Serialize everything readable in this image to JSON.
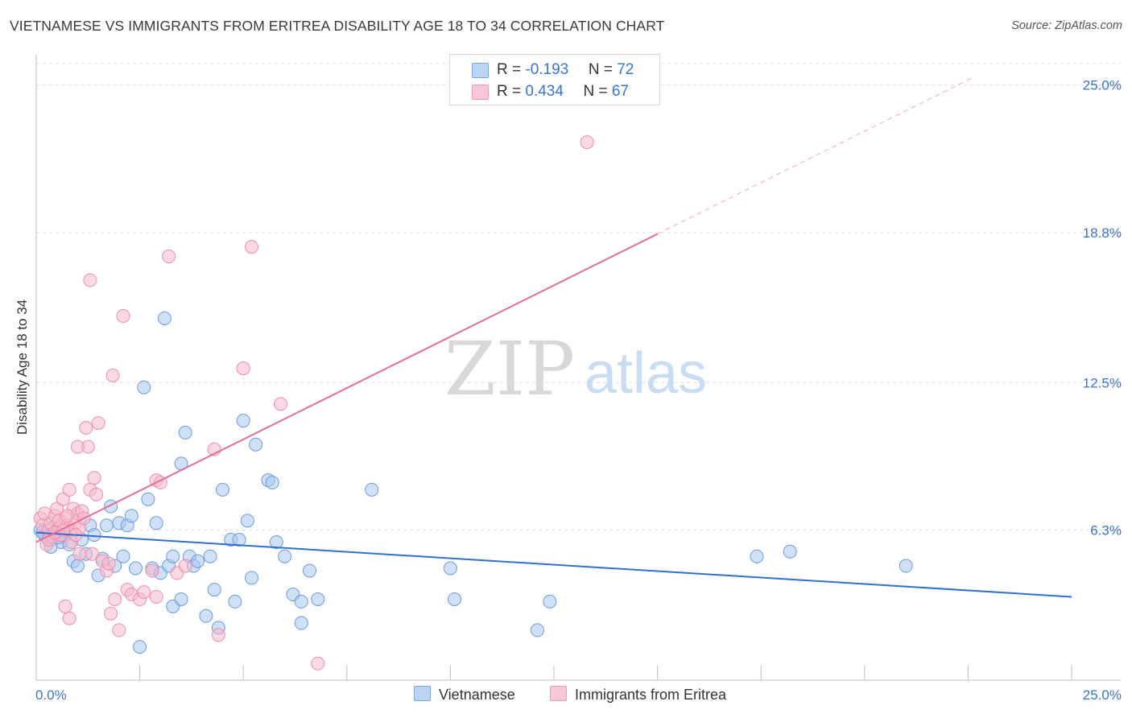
{
  "title": "VIETNAMESE VS IMMIGRANTS FROM ERITREA DISABILITY AGE 18 TO 34 CORRELATION CHART",
  "source": "Source: ZipAtlas.com",
  "watermark": {
    "zip": "ZIP",
    "atlas": "atlas"
  },
  "legend_top": [
    {
      "r_label": "R = ",
      "r_value": "-0.193",
      "n_label": "N = ",
      "n_value": "72"
    },
    {
      "r_label": "R = ",
      "r_value": "0.434",
      "n_label": "N = ",
      "n_value": "67"
    }
  ],
  "legend_bottom": [
    "Vietnamese",
    "Immigrants from Eritrea"
  ],
  "colors": {
    "blue_fill": "#a9c8f0",
    "blue_stroke": "#6a9be0",
    "blue_line": "#2f6fd0",
    "pink_fill": "#f7b9cc",
    "pink_stroke": "#ec8eaa",
    "pink_line": "#e0709a",
    "tick_text": "#3a74d0"
  },
  "chart_data": {
    "type": "scatter",
    "title": "VIETNAMESE VS IMMIGRANTS FROM ERITREA DISABILITY AGE 18 TO 34 CORRELATION CHART",
    "xlabel": "",
    "ylabel": "Disability Age 18 to 34",
    "xlim": [
      0,
      25
    ],
    "ylim": [
      0,
      25.9
    ],
    "x_tick_labels": [
      "0.0%",
      "25.0%"
    ],
    "y_ticks": [
      6.3,
      12.5,
      18.8,
      25.0
    ],
    "y_tick_labels": [
      "6.3%",
      "12.5%",
      "18.8%",
      "25.0%"
    ],
    "grid": true,
    "series": [
      {
        "name": "Vietnamese",
        "color": "#a9c8f0",
        "r": -0.193,
        "n": 72,
        "trend": {
          "x": [
            0,
            25
          ],
          "y": [
            6.2,
            3.5
          ],
          "dashed_from": null
        },
        "points": [
          [
            0.1,
            6.3
          ],
          [
            0.2,
            6.1
          ],
          [
            0.3,
            6.0
          ],
          [
            0.4,
            6.4
          ],
          [
            0.5,
            6.2
          ],
          [
            0.6,
            5.8
          ],
          [
            0.7,
            6.1
          ],
          [
            0.8,
            5.7
          ],
          [
            0.9,
            5.0
          ],
          [
            1.0,
            4.8
          ],
          [
            1.1,
            5.9
          ],
          [
            1.2,
            5.3
          ],
          [
            1.3,
            6.5
          ],
          [
            1.4,
            6.1
          ],
          [
            1.5,
            4.4
          ],
          [
            1.6,
            5.1
          ],
          [
            1.7,
            6.5
          ],
          [
            1.8,
            7.3
          ],
          [
            1.9,
            4.8
          ],
          [
            2.0,
            6.6
          ],
          [
            2.1,
            5.2
          ],
          [
            2.2,
            6.5
          ],
          [
            2.3,
            6.9
          ],
          [
            2.4,
            4.7
          ],
          [
            2.5,
            1.4
          ],
          [
            2.6,
            12.3
          ],
          [
            2.7,
            7.6
          ],
          [
            2.8,
            4.7
          ],
          [
            2.9,
            6.6
          ],
          [
            3.0,
            4.5
          ],
          [
            3.1,
            15.2
          ],
          [
            3.2,
            4.8
          ],
          [
            3.3,
            5.2
          ],
          [
            3.3,
            3.1
          ],
          [
            3.5,
            9.1
          ],
          [
            3.5,
            3.4
          ],
          [
            3.6,
            10.4
          ],
          [
            3.7,
            5.2
          ],
          [
            3.8,
            4.8
          ],
          [
            3.9,
            5.0
          ],
          [
            4.1,
            2.7
          ],
          [
            4.2,
            5.2
          ],
          [
            4.3,
            3.8
          ],
          [
            4.4,
            2.2
          ],
          [
            4.5,
            8.0
          ],
          [
            4.7,
            5.9
          ],
          [
            4.8,
            3.3
          ],
          [
            4.9,
            5.9
          ],
          [
            5.0,
            10.9
          ],
          [
            5.1,
            6.7
          ],
          [
            5.2,
            4.3
          ],
          [
            5.3,
            9.9
          ],
          [
            5.6,
            8.4
          ],
          [
            5.7,
            8.3
          ],
          [
            5.8,
            5.8
          ],
          [
            6.0,
            5.2
          ],
          [
            6.2,
            3.6
          ],
          [
            6.4,
            3.3
          ],
          [
            6.4,
            2.4
          ],
          [
            6.6,
            4.6
          ],
          [
            6.8,
            3.4
          ],
          [
            8.1,
            8.0
          ],
          [
            10.0,
            4.7
          ],
          [
            10.1,
            3.4
          ],
          [
            12.1,
            2.1
          ],
          [
            12.4,
            3.3
          ],
          [
            17.4,
            5.2
          ],
          [
            18.2,
            5.4
          ],
          [
            21.0,
            4.8
          ],
          [
            0.35,
            5.6
          ],
          [
            0.55,
            6.0
          ],
          [
            0.15,
            6.2
          ]
        ]
      },
      {
        "name": "Immigrants from Eritrea",
        "color": "#f7b9cc",
        "r": 0.434,
        "n": 67,
        "trend": {
          "x": [
            0,
            22.6
          ],
          "y": [
            5.8,
            25.3
          ],
          "dashed_from": 15.0
        },
        "points": [
          [
            0.1,
            6.8
          ],
          [
            0.15,
            6.5
          ],
          [
            0.2,
            7.0
          ],
          [
            0.25,
            5.7
          ],
          [
            0.3,
            6.3
          ],
          [
            0.35,
            6.6
          ],
          [
            0.4,
            6.0
          ],
          [
            0.45,
            6.9
          ],
          [
            0.5,
            7.2
          ],
          [
            0.55,
            6.4
          ],
          [
            0.6,
            6.1
          ],
          [
            0.65,
            7.6
          ],
          [
            0.7,
            6.8
          ],
          [
            0.75,
            6.5
          ],
          [
            0.8,
            8.0
          ],
          [
            0.85,
            6.3
          ],
          [
            0.9,
            7.2
          ],
          [
            0.95,
            6.6
          ],
          [
            1.0,
            7.0
          ],
          [
            1.05,
            6.4
          ],
          [
            1.1,
            7.1
          ],
          [
            1.15,
            6.8
          ],
          [
            1.2,
            10.6
          ],
          [
            1.25,
            9.8
          ],
          [
            1.3,
            8.0
          ],
          [
            1.35,
            5.3
          ],
          [
            1.4,
            8.5
          ],
          [
            1.45,
            7.8
          ],
          [
            1.5,
            10.8
          ],
          [
            1.6,
            5.0
          ],
          [
            1.7,
            4.6
          ],
          [
            1.75,
            4.9
          ],
          [
            1.8,
            2.8
          ],
          [
            1.85,
            12.8
          ],
          [
            1.9,
            3.4
          ],
          [
            2.0,
            2.1
          ],
          [
            2.1,
            15.3
          ],
          [
            2.2,
            3.8
          ],
          [
            2.3,
            3.6
          ],
          [
            2.5,
            3.4
          ],
          [
            2.6,
            3.7
          ],
          [
            2.8,
            4.6
          ],
          [
            2.9,
            3.5
          ],
          [
            2.9,
            8.4
          ],
          [
            3.0,
            8.3
          ],
          [
            3.2,
            17.8
          ],
          [
            3.4,
            4.5
          ],
          [
            3.6,
            4.8
          ],
          [
            4.3,
            9.7
          ],
          [
            4.4,
            1.9
          ],
          [
            5.0,
            13.1
          ],
          [
            5.2,
            18.2
          ],
          [
            5.9,
            11.6
          ],
          [
            6.8,
            0.7
          ],
          [
            13.3,
            22.6
          ],
          [
            1.3,
            16.8
          ],
          [
            0.3,
            5.9
          ],
          [
            0.45,
            6.2
          ],
          [
            0.55,
            6.7
          ],
          [
            0.65,
            6.3
          ],
          [
            0.75,
            6.9
          ],
          [
            0.85,
            5.8
          ],
          [
            0.95,
            6.1
          ],
          [
            1.05,
            5.3
          ],
          [
            0.7,
            3.1
          ],
          [
            0.8,
            2.6
          ],
          [
            1.0,
            9.8
          ]
        ]
      }
    ]
  }
}
